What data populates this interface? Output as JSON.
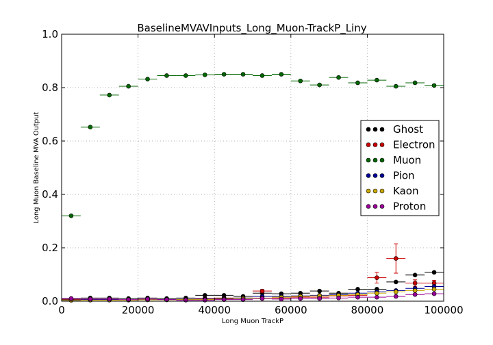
{
  "chart_data": {
    "type": "scatter",
    "title": "BaselineMVAVInputs_Long_Muon-TrackP_Liny",
    "xlabel": "Long Muon TrackP",
    "ylabel": "Long Muon Baseline MVA Output",
    "xlim": [
      0,
      100000
    ],
    "ylim": [
      0,
      1.0
    ],
    "x_ticks": [
      "0",
      "20000",
      "40000",
      "60000",
      "80000",
      "100000"
    ],
    "y_ticks": [
      "0.0",
      "0.2",
      "0.4",
      "0.6",
      "0.8",
      "1.0"
    ],
    "grid": true,
    "legend_position": "right",
    "bin_width": 5000,
    "x": [
      2500,
      7500,
      12500,
      17500,
      22500,
      27500,
      32500,
      37500,
      42500,
      47500,
      52500,
      57500,
      62500,
      67500,
      72500,
      77500,
      82500,
      87500,
      92500,
      97500
    ],
    "series": [
      {
        "name": "Ghost",
        "color": "#000000",
        "values": [
          0.008,
          0.012,
          0.012,
          0.01,
          0.012,
          0.01,
          0.012,
          0.022,
          0.022,
          0.018,
          0.03,
          0.028,
          0.03,
          0.038,
          0.03,
          0.045,
          0.045,
          0.072,
          0.098,
          0.108
        ]
      },
      {
        "name": "Electron",
        "color": "#cc0000",
        "values": [
          0.005,
          0.006,
          0.006,
          0.005,
          0.007,
          0.006,
          0.007,
          0.01,
          0.012,
          0.012,
          0.038,
          0.012,
          0.015,
          0.015,
          0.02,
          0.022,
          0.088,
          0.16,
          0.068,
          0.068
        ],
        "errors": [
          0.002,
          0.002,
          0.002,
          0.002,
          0.002,
          0.002,
          0.002,
          0.003,
          0.003,
          0.003,
          0.006,
          0.004,
          0.005,
          0.006,
          0.007,
          0.01,
          0.02,
          0.055,
          0.012,
          0.01
        ]
      },
      {
        "name": "Muon",
        "color": "#006600",
        "values": [
          0.32,
          0.652,
          0.772,
          0.805,
          0.832,
          0.845,
          0.845,
          0.848,
          0.85,
          0.85,
          0.845,
          0.85,
          0.825,
          0.81,
          0.838,
          0.818,
          0.828,
          0.805,
          0.818,
          0.808
        ]
      },
      {
        "name": "Pion",
        "color": "#000099",
        "values": [
          0.004,
          0.005,
          0.005,
          0.005,
          0.006,
          0.006,
          0.007,
          0.008,
          0.01,
          0.012,
          0.018,
          0.018,
          0.02,
          0.022,
          0.025,
          0.03,
          0.035,
          0.04,
          0.048,
          0.055
        ]
      },
      {
        "name": "Kaon",
        "color": "#ccaa00",
        "values": [
          0.003,
          0.004,
          0.004,
          0.004,
          0.005,
          0.005,
          0.006,
          0.006,
          0.008,
          0.01,
          0.012,
          0.015,
          0.018,
          0.02,
          0.022,
          0.025,
          0.03,
          0.035,
          0.04,
          0.045
        ]
      },
      {
        "name": "Proton",
        "color": "#990099",
        "values": [
          0.01,
          0.008,
          0.008,
          0.006,
          0.008,
          0.006,
          0.004,
          0.004,
          0.006,
          0.006,
          0.01,
          0.008,
          0.01,
          0.01,
          0.012,
          0.015,
          0.015,
          0.018,
          0.025,
          0.028
        ]
      }
    ]
  }
}
